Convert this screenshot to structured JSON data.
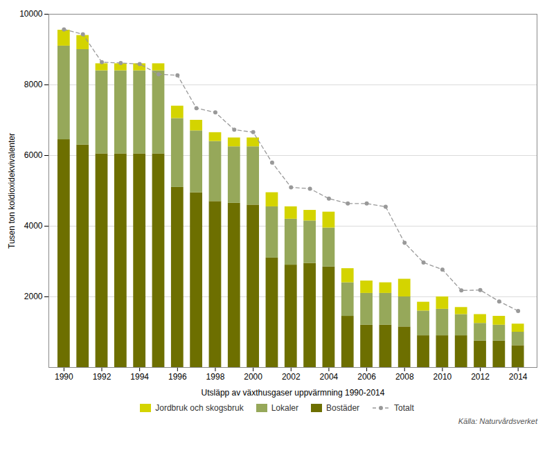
{
  "chart_data": {
    "type": "bar",
    "stacked": true,
    "xlabel": "Utsläpp av växthusgaser uppvärmning 1990-2014",
    "ylabel": "Tusen ton koldioxidekvivalenter",
    "x": [
      1990,
      1991,
      1992,
      1993,
      1994,
      1995,
      1996,
      1997,
      1998,
      1999,
      2000,
      2001,
      2002,
      2003,
      2004,
      2005,
      2006,
      2007,
      2008,
      2009,
      2010,
      2011,
      2012,
      2013,
      2014
    ],
    "series": [
      {
        "name": "Bostäder",
        "type": "bar",
        "color": "#6d6f00",
        "values": [
          6450,
          6300,
          6050,
          6050,
          6050,
          6050,
          5100,
          4950,
          4700,
          4650,
          4600,
          3100,
          2900,
          2950,
          2850,
          1450,
          1200,
          1200,
          1150,
          900,
          900,
          900,
          750,
          750,
          620
        ]
      },
      {
        "name": "Lokaler",
        "type": "bar",
        "color": "#96a85a",
        "values": [
          2650,
          2700,
          2350,
          2350,
          2350,
          2350,
          1950,
          1750,
          1700,
          1600,
          1650,
          1450,
          1300,
          1200,
          1100,
          950,
          900,
          900,
          850,
          700,
          750,
          600,
          500,
          450,
          380
        ]
      },
      {
        "name": "Jordbruk och skogsbruk",
        "type": "bar",
        "color": "#d4d400",
        "values": [
          450,
          400,
          200,
          200,
          200,
          200,
          350,
          300,
          250,
          250,
          250,
          400,
          350,
          300,
          450,
          400,
          350,
          300,
          500,
          250,
          350,
          200,
          250,
          250,
          230
        ]
      },
      {
        "name": "Totalt",
        "type": "line",
        "color": "#999999",
        "line_style": "dashed",
        "marker": "circle",
        "values": [
          9570,
          9430,
          8640,
          8620,
          8590,
          8300,
          8270,
          7340,
          7220,
          6730,
          6660,
          5800,
          5100,
          5060,
          4780,
          4640,
          4640,
          4550,
          3530,
          2970,
          2770,
          2180,
          2190,
          1870,
          1600
        ]
      }
    ],
    "xlim": [
      1989.2,
      2015.0
    ],
    "xticks": [
      1990,
      1992,
      1994,
      1996,
      1998,
      2000,
      2002,
      2004,
      2006,
      2008,
      2010,
      2012,
      2014
    ],
    "ylim": [
      0,
      10000
    ],
    "yticks": [
      2000,
      4000,
      6000,
      8000,
      10000
    ],
    "grid": true,
    "legend": "bottom",
    "annotations": [
      "Källa: Naturvårdsverket"
    ]
  }
}
